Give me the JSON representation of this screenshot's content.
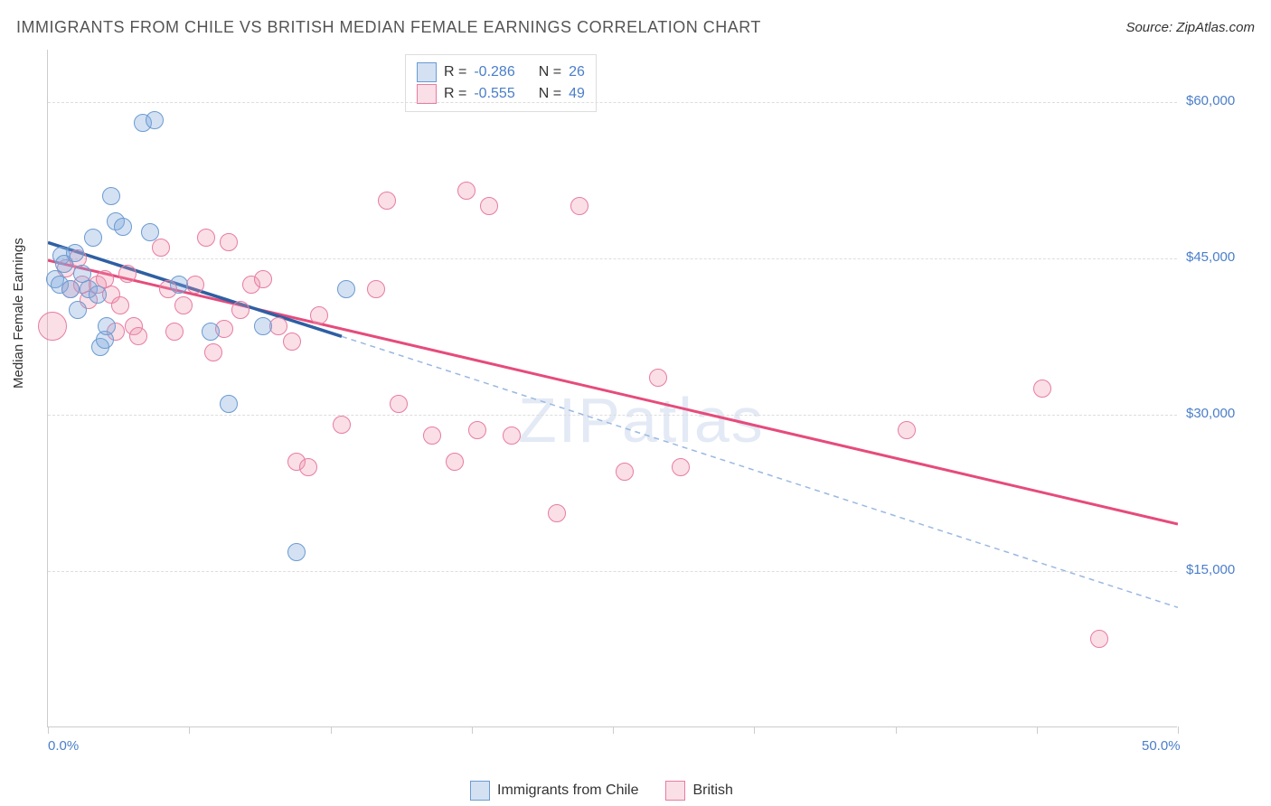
{
  "header": {
    "title": "IMMIGRANTS FROM CHILE VS BRITISH MEDIAN FEMALE EARNINGS CORRELATION CHART",
    "source": "Source: ZipAtlas.com"
  },
  "ylabel": "Median Female Earnings",
  "watermark": "ZIPatlas",
  "chart": {
    "type": "scatter",
    "xlim": [
      0,
      50
    ],
    "ylim": [
      0,
      65000
    ],
    "x_ticks": [
      0,
      6.25,
      12.5,
      18.75,
      25,
      31.25,
      37.5,
      43.75,
      50
    ],
    "x_tick_labels_shown": {
      "0": "0.0%",
      "50": "50.0%"
    },
    "y_gridlines": [
      15000,
      30000,
      45000,
      60000
    ],
    "y_tick_labels": [
      "$15,000",
      "$30,000",
      "$45,000",
      "$60,000"
    ],
    "background_color": "#ffffff",
    "grid_color": "#dddddd",
    "axis_color": "#cccccc"
  },
  "series": {
    "chile": {
      "label": "Immigrants from Chile",
      "fill": "rgba(130,170,220,0.35)",
      "stroke": "#6b9bd1",
      "marker_radius": 10,
      "r_value": "-0.286",
      "n_value": "26",
      "trend_color": "#2e5fa3",
      "trend_dash_color": "#9ab8e0",
      "trend_solid": {
        "x1": 0,
        "y1": 46500,
        "x2": 13,
        "y2": 37500
      },
      "trend_dash": {
        "x1": 13,
        "y1": 37500,
        "x2": 50,
        "y2": 11500
      },
      "points": [
        {
          "x": 0.3,
          "y": 43000
        },
        {
          "x": 0.5,
          "y": 42500
        },
        {
          "x": 0.6,
          "y": 45200
        },
        {
          "x": 0.7,
          "y": 44500
        },
        {
          "x": 1.0,
          "y": 42000
        },
        {
          "x": 1.2,
          "y": 45500
        },
        {
          "x": 1.3,
          "y": 40000
        },
        {
          "x": 1.5,
          "y": 43500
        },
        {
          "x": 1.8,
          "y": 42000
        },
        {
          "x": 2.0,
          "y": 47000
        },
        {
          "x": 2.2,
          "y": 41500
        },
        {
          "x": 2.3,
          "y": 36500
        },
        {
          "x": 2.5,
          "y": 37200
        },
        {
          "x": 2.6,
          "y": 38500
        },
        {
          "x": 2.8,
          "y": 51000
        },
        {
          "x": 3.0,
          "y": 48500
        },
        {
          "x": 3.3,
          "y": 48000
        },
        {
          "x": 4.2,
          "y": 58000
        },
        {
          "x": 4.7,
          "y": 58200
        },
        {
          "x": 4.5,
          "y": 47500
        },
        {
          "x": 5.8,
          "y": 42500
        },
        {
          "x": 7.2,
          "y": 38000
        },
        {
          "x": 8.0,
          "y": 31000
        },
        {
          "x": 9.5,
          "y": 38500
        },
        {
          "x": 11.0,
          "y": 16800
        },
        {
          "x": 13.2,
          "y": 42000
        }
      ]
    },
    "british": {
      "label": "British",
      "fill": "rgba(240,150,175,0.3)",
      "stroke": "#e87ca0",
      "marker_radius": 10,
      "r_value": "-0.555",
      "n_value": "49",
      "trend_color": "#e64b7b",
      "trend_solid": {
        "x1": 0,
        "y1": 44800,
        "x2": 50,
        "y2": 19500
      },
      "points": [
        {
          "x": 0.2,
          "y": 38500,
          "r": 16
        },
        {
          "x": 0.8,
          "y": 44000
        },
        {
          "x": 1.0,
          "y": 42000
        },
        {
          "x": 1.3,
          "y": 45000
        },
        {
          "x": 1.5,
          "y": 42500
        },
        {
          "x": 1.8,
          "y": 41000
        },
        {
          "x": 2.2,
          "y": 42500
        },
        {
          "x": 2.5,
          "y": 43000
        },
        {
          "x": 2.8,
          "y": 41500
        },
        {
          "x": 3.0,
          "y": 38000
        },
        {
          "x": 3.2,
          "y": 40500
        },
        {
          "x": 3.5,
          "y": 43500
        },
        {
          "x": 3.8,
          "y": 38500
        },
        {
          "x": 4.0,
          "y": 37500
        },
        {
          "x": 5.0,
          "y": 46000
        },
        {
          "x": 5.3,
          "y": 42000
        },
        {
          "x": 5.6,
          "y": 38000
        },
        {
          "x": 6.0,
          "y": 40500
        },
        {
          "x": 6.5,
          "y": 42500
        },
        {
          "x": 7.0,
          "y": 47000
        },
        {
          "x": 7.3,
          "y": 36000
        },
        {
          "x": 7.8,
          "y": 38200
        },
        {
          "x": 8.0,
          "y": 46500
        },
        {
          "x": 8.5,
          "y": 40000
        },
        {
          "x": 9.0,
          "y": 42500
        },
        {
          "x": 9.5,
          "y": 43000
        },
        {
          "x": 10.2,
          "y": 38500
        },
        {
          "x": 10.8,
          "y": 37000
        },
        {
          "x": 11.0,
          "y": 25500
        },
        {
          "x": 11.5,
          "y": 25000
        },
        {
          "x": 12.0,
          "y": 39500
        },
        {
          "x": 13.0,
          "y": 29000
        },
        {
          "x": 14.5,
          "y": 42000
        },
        {
          "x": 15.0,
          "y": 50500
        },
        {
          "x": 15.5,
          "y": 31000
        },
        {
          "x": 17.0,
          "y": 28000
        },
        {
          "x": 18.5,
          "y": 51500
        },
        {
          "x": 19.0,
          "y": 28500
        },
        {
          "x": 19.5,
          "y": 50000
        },
        {
          "x": 20.5,
          "y": 28000
        },
        {
          "x": 22.5,
          "y": 20500
        },
        {
          "x": 23.5,
          "y": 50000
        },
        {
          "x": 25.5,
          "y": 24500
        },
        {
          "x": 27.0,
          "y": 33500
        },
        {
          "x": 28.0,
          "y": 25000
        },
        {
          "x": 38.0,
          "y": 28500
        },
        {
          "x": 44.0,
          "y": 32500
        },
        {
          "x": 46.5,
          "y": 8500
        },
        {
          "x": 18.0,
          "y": 25500
        }
      ]
    }
  },
  "legend_top": {
    "r_label": "R =",
    "n_label": "N ="
  }
}
